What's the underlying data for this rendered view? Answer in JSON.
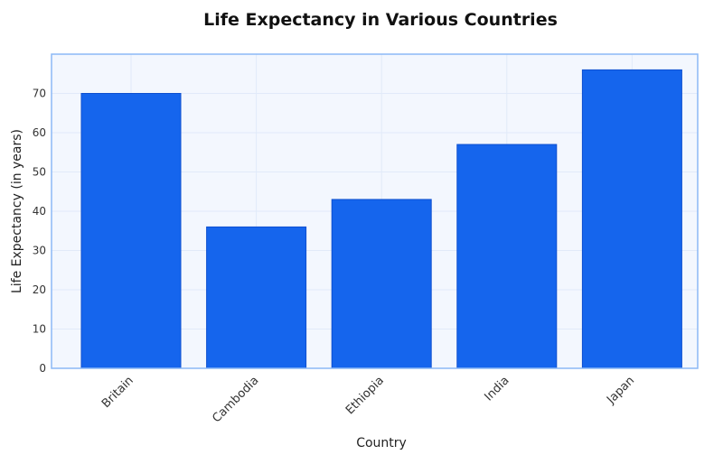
{
  "chart_data": {
    "type": "bar",
    "title": "Life Expectancy in Various Countries",
    "xlabel": "Country",
    "ylabel": "Life Expectancy (in years)",
    "categories": [
      "Britain",
      "Cambodia",
      "Ethiopia",
      "India",
      "Japan"
    ],
    "values": [
      70,
      36,
      43,
      57,
      76
    ],
    "ylim": [
      0,
      80
    ],
    "yticks": [
      0,
      10,
      20,
      30,
      40,
      50,
      60,
      70
    ],
    "grid": true,
    "colors": {
      "bar": "#1565ED",
      "bar_edge": "#0D4FD0",
      "plot_bg": "#F3F7FE",
      "plot_border": "#8BB8F5",
      "grid": "#E1EAF9"
    }
  }
}
